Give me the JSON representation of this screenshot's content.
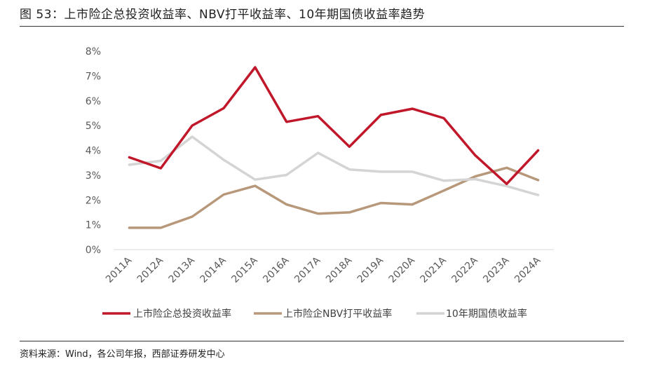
{
  "figure": {
    "title": "图 53：上市险企总投资收益率、NBV打平收益率、10年期国债收益率趋势",
    "source": "资料来源：Wind，各公司年报，西部证券研发中心"
  },
  "chart_data": {
    "type": "line",
    "categories": [
      "2011A",
      "2012A",
      "2013A",
      "2014A",
      "2015A",
      "2016A",
      "2017A",
      "2018A",
      "2019A",
      "2020A",
      "2021A",
      "2022A",
      "2023A",
      "2024A"
    ],
    "y_ticks": [
      "0%",
      "1%",
      "2%",
      "3%",
      "4%",
      "5%",
      "6%",
      "7%",
      "8%"
    ],
    "ylim": [
      0,
      8
    ],
    "grid": false,
    "legend_position": "bottom",
    "series": [
      {
        "name": "上市险企总投资收益率",
        "color": "#c0182a",
        "values": [
          3.72,
          3.28,
          5.0,
          5.7,
          7.35,
          5.15,
          5.38,
          4.15,
          5.43,
          5.68,
          5.3,
          3.8,
          2.65,
          4.0
        ]
      },
      {
        "name": "上市险企NBV打平收益率",
        "color": "#b8987a",
        "values": [
          0.88,
          0.88,
          1.33,
          2.22,
          2.57,
          1.82,
          1.45,
          1.5,
          1.88,
          1.82,
          2.38,
          2.95,
          3.3,
          2.8
        ]
      },
      {
        "name": "10年期国债收益率",
        "color": "#d4d4d4",
        "values": [
          3.42,
          3.58,
          4.55,
          3.62,
          2.82,
          3.01,
          3.9,
          3.23,
          3.14,
          3.14,
          2.78,
          2.84,
          2.56,
          2.2
        ]
      }
    ]
  }
}
